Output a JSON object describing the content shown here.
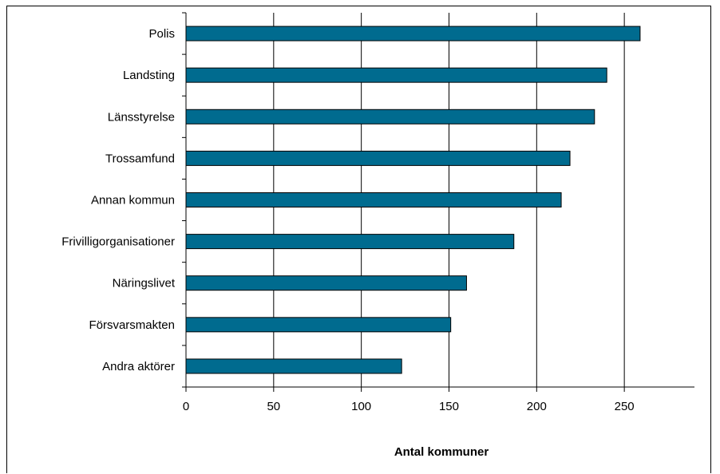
{
  "chart_data": {
    "type": "bar",
    "orientation": "horizontal",
    "categories": [
      "Polis",
      "Landsting",
      "Länsstyrelse",
      "Trossamfund",
      "Annan kommun",
      "Frivilligorganisationer",
      "Näringslivet",
      "Försvarsmakten",
      "Andra aktörer"
    ],
    "values": [
      259,
      240,
      233,
      219,
      214,
      187,
      160,
      151,
      123
    ],
    "title": "",
    "xlabel": "Antal kommuner",
    "ylabel": "",
    "xlim": [
      0,
      290
    ],
    "xticks": [
      0,
      50,
      100,
      150,
      200,
      250
    ],
    "grid": "vertical",
    "legend": "none",
    "bar_color": "#006b8f",
    "bar_edge_color": "#000000"
  }
}
